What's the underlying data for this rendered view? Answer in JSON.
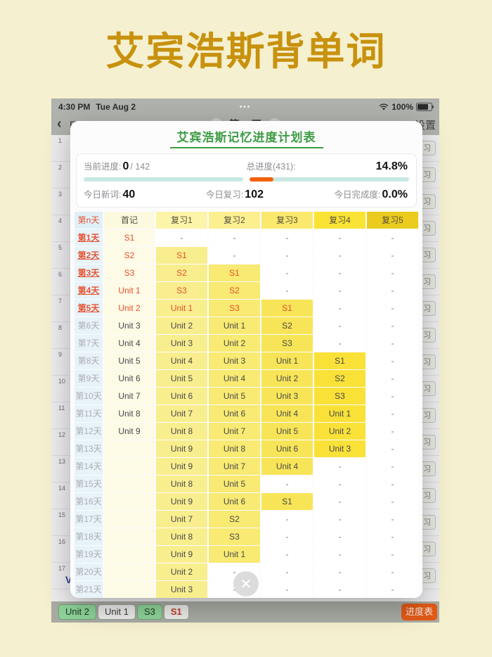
{
  "page": {
    "title": "艾宾浩斯背单词"
  },
  "status_bar": {
    "time": "4:30 PM",
    "date": "Tue Aug 2",
    "dots": "•••",
    "battery": "100%"
  },
  "nav": {
    "back_chevron": "‹",
    "back_partial": "E",
    "day_stepper": "第 5 天",
    "settings": "设置"
  },
  "background_list": {
    "row_numbers": [
      "1",
      "2",
      "3",
      "4",
      "5",
      "6",
      "7",
      "8",
      "9",
      "10",
      "11",
      "12",
      "13",
      "14",
      "15",
      "16",
      "17"
    ],
    "row_button_label": "习",
    "partial_word": "VB"
  },
  "modal": {
    "title": "艾宾浩斯记忆进度计划表",
    "stats": {
      "current_label": "当前进度:",
      "current_value": "0",
      "current_total": "/ 142",
      "current_progress_pct": 0,
      "total_label": "总进度(431):",
      "total_percent": "14.8%",
      "total_progress_pct": 14.8,
      "today_new_label": "今日新词:",
      "today_new_value": "40",
      "today_review_label": "今日复习:",
      "today_review_value": "102",
      "today_done_label": "今日完成度:",
      "today_done_value": "0.0%"
    },
    "table": {
      "headers": [
        "第n天",
        "首记",
        "复习1",
        "复习2",
        "复习3",
        "复习4",
        "复习5"
      ],
      "rows": [
        {
          "day": "第1天",
          "highlight": true,
          "first": "S1",
          "reviews": [
            "-",
            "-",
            "-",
            "-",
            "-"
          ]
        },
        {
          "day": "第2天",
          "highlight": true,
          "first": "S2",
          "reviews": [
            "S1",
            "-",
            "-",
            "-",
            "-"
          ]
        },
        {
          "day": "第3天",
          "highlight": true,
          "first": "S3",
          "reviews": [
            "S2",
            "S1",
            "-",
            "-",
            "-"
          ]
        },
        {
          "day": "第4天",
          "highlight": true,
          "first": "Unit 1",
          "reviews": [
            "S3",
            "S2",
            "-",
            "-",
            "-"
          ]
        },
        {
          "day": "第5天",
          "highlight": true,
          "first": "Unit 2",
          "reviews": [
            "Unit 1",
            "S3",
            "S1",
            "-",
            "-"
          ]
        },
        {
          "day": "第6天",
          "highlight": false,
          "first": "Unit 3",
          "reviews": [
            "Unit 2",
            "Unit 1",
            "S2",
            "-",
            "-"
          ]
        },
        {
          "day": "第7天",
          "highlight": false,
          "first": "Unit 4",
          "reviews": [
            "Unit 3",
            "Unit 2",
            "S3",
            "-",
            "-"
          ]
        },
        {
          "day": "第8天",
          "highlight": false,
          "first": "Unit 5",
          "reviews": [
            "Unit 4",
            "Unit 3",
            "Unit 1",
            "S1",
            "-"
          ]
        },
        {
          "day": "第9天",
          "highlight": false,
          "first": "Unit 6",
          "reviews": [
            "Unit 5",
            "Unit 4",
            "Unit 2",
            "S2",
            "-"
          ]
        },
        {
          "day": "第10天",
          "highlight": false,
          "first": "Unit 7",
          "reviews": [
            "Unit 6",
            "Unit 5",
            "Unit 3",
            "S3",
            "-"
          ]
        },
        {
          "day": "第11天",
          "highlight": false,
          "first": "Unit 8",
          "reviews": [
            "Unit 7",
            "Unit 6",
            "Unit 4",
            "Unit 1",
            "-"
          ]
        },
        {
          "day": "第12天",
          "highlight": false,
          "first": "Unit 9",
          "reviews": [
            "Unit 8",
            "Unit 7",
            "Unit 5",
            "Unit 2",
            "-"
          ]
        },
        {
          "day": "第13天",
          "highlight": false,
          "first": "",
          "reviews": [
            "Unit 9",
            "Unit 8",
            "Unit 6",
            "Unit 3",
            "-"
          ]
        },
        {
          "day": "第14天",
          "highlight": false,
          "first": "",
          "reviews": [
            "Unit 9",
            "Unit 7",
            "Unit 4",
            "-",
            "-"
          ]
        },
        {
          "day": "第15天",
          "highlight": false,
          "first": "",
          "reviews": [
            "Unit 8",
            "Unit 5",
            "-",
            "-",
            "-"
          ]
        },
        {
          "day": "第16天",
          "highlight": false,
          "first": "",
          "reviews": [
            "Unit 9",
            "Unit 6",
            "S1",
            "-",
            "-"
          ]
        },
        {
          "day": "第17天",
          "highlight": false,
          "first": "",
          "reviews": [
            "Unit 7",
            "S2",
            "-",
            "-",
            "-"
          ]
        },
        {
          "day": "第18天",
          "highlight": false,
          "first": "",
          "reviews": [
            "Unit 8",
            "S3",
            "-",
            "-",
            "-"
          ]
        },
        {
          "day": "第19天",
          "highlight": false,
          "first": "",
          "reviews": [
            "Unit 9",
            "Unit 1",
            "-",
            "-",
            "-"
          ]
        },
        {
          "day": "第20天",
          "highlight": false,
          "first": "",
          "reviews": [
            "Unit 2",
            "-",
            "-",
            "-",
            "-"
          ]
        },
        {
          "day": "第21天",
          "highlight": false,
          "first": "",
          "reviews": [
            "Unit 3",
            "-",
            "-",
            "-",
            "-"
          ]
        }
      ]
    },
    "close_icon": "✕"
  },
  "toolbar": {
    "buttons": [
      {
        "label": "Unit 2",
        "style": "green"
      },
      {
        "label": "Unit 1",
        "style": "white"
      },
      {
        "label": "S3",
        "style": "green"
      },
      {
        "label": "S1",
        "style": "white-red"
      }
    ],
    "progress_button": "进度表"
  },
  "colors": {
    "page_bg": "#F5F0CF",
    "title_gold": "#C8920E",
    "modal_green": "#3C9C42",
    "progress_teal": "#C7E9E3",
    "progress_orange": "#F2610D",
    "highlight_red": "#E6502F",
    "header_day_bg": "#DFF0F7",
    "header_first_bg": "#FCF9DF",
    "header_review_bg": [
      "#FCF4A8",
      "#FBEF90",
      "#FAE96C",
      "#FBE335",
      "#EBCB1D"
    ],
    "cell_day_bg": "#E7F3F8",
    "cell_first_bg": "#FDFAE6",
    "cell_review_bg": [
      "#F9EE8E",
      "#F8EA72",
      "#F7E557",
      "#F9E138",
      "#F0D42A"
    ],
    "toolbar_green": "#8FD49A",
    "progress_button_orange": "#E35A17"
  }
}
